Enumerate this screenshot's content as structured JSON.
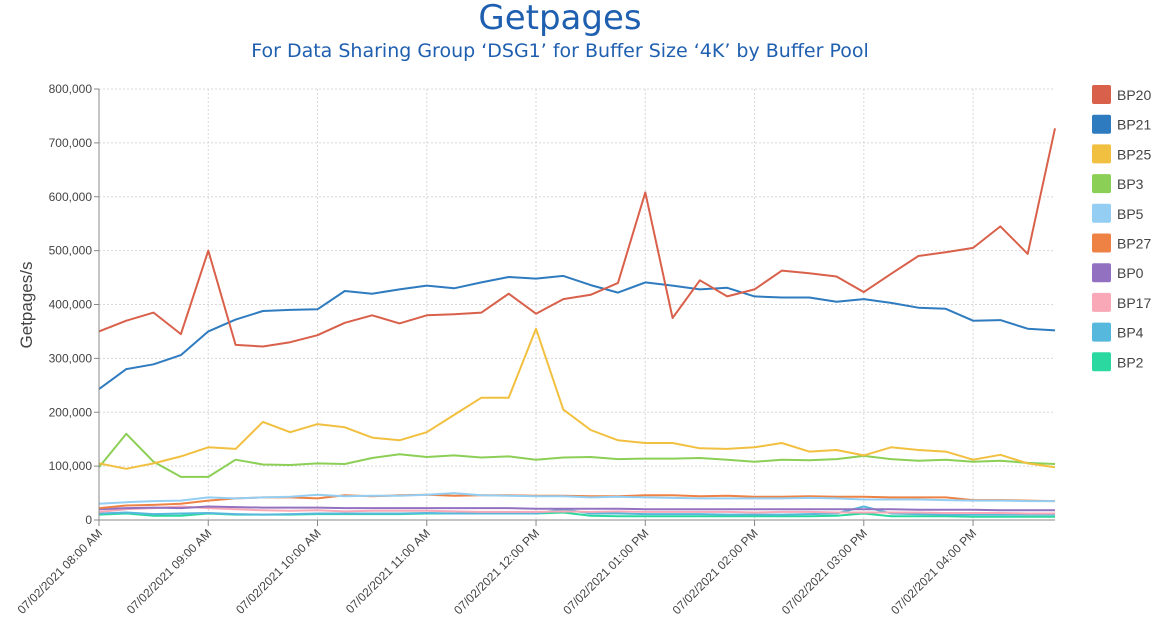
{
  "chart_data": {
    "type": "line",
    "title": "Getpages",
    "subtitle": "For Data Sharing Group ‘DSG1’ for Buffer Size ‘4K’ by Buffer Pool",
    "ylabel": "Getpages/s",
    "xlabel": "",
    "ylim": [
      0,
      800000
    ],
    "yticks": [
      0,
      100000,
      200000,
      300000,
      400000,
      500000,
      600000,
      700000,
      800000
    ],
    "ytick_labels": [
      "0",
      "100,000",
      "200,000",
      "300,000",
      "400,000",
      "500,000",
      "600,000",
      "700,000",
      "800,000"
    ],
    "x_range_minutes": [
      0,
      525
    ],
    "xticks": [
      0,
      60,
      120,
      180,
      240,
      300,
      360,
      420,
      480
    ],
    "xtick_labels": [
      "07/02/2021 08:00 AM",
      "07/02/2021 09:00 AM",
      "07/02/2021 10:00 AM",
      "07/02/2021 11:00 AM",
      "07/02/2021 12:00 PM",
      "07/02/2021 01:00 PM",
      "07/02/2021 02:00 PM",
      "07/02/2021 03:00 PM",
      "07/02/2021 04:00 PM"
    ],
    "x": [
      0,
      15,
      30,
      45,
      60,
      75,
      90,
      105,
      120,
      135,
      150,
      165,
      180,
      195,
      210,
      225,
      240,
      255,
      270,
      285,
      300,
      315,
      330,
      345,
      360,
      375,
      390,
      405,
      420,
      435,
      450,
      465,
      480,
      495,
      510,
      525
    ],
    "grid": true,
    "legend_position": "right",
    "series": [
      {
        "name": "BP20",
        "color": "#d9604a",
        "values": [
          350000,
          370000,
          385000,
          345000,
          500000,
          325000,
          322000,
          330000,
          343000,
          366000,
          380000,
          365000,
          380000,
          382000,
          385000,
          420000,
          383000,
          410000,
          418000,
          440000,
          608000,
          375000,
          445000,
          415000,
          428000,
          463000,
          458000,
          452000,
          423000,
          457000,
          490000,
          497000,
          505000,
          545000,
          494000,
          727000
        ]
      },
      {
        "name": "BP21",
        "color": "#2f7bbf",
        "values": [
          243000,
          280000,
          289000,
          306000,
          350000,
          372000,
          388000,
          390000,
          391000,
          425000,
          420000,
          428000,
          435000,
          430000,
          441000,
          451000,
          448000,
          453000,
          436000,
          422000,
          441000,
          435000,
          428000,
          431000,
          415000,
          413000,
          413000,
          405000,
          410000,
          403000,
          394000,
          392000,
          370000,
          371000,
          355000,
          352000
        ]
      },
      {
        "name": "BP25",
        "color": "#f2c040",
        "values": [
          105000,
          95000,
          105000,
          118000,
          135000,
          132000,
          182000,
          163000,
          178000,
          172000,
          153000,
          148000,
          163000,
          195000,
          227000,
          227000,
          355000,
          205000,
          167000,
          148000,
          143000,
          143000,
          133000,
          132000,
          135000,
          143000,
          127000,
          130000,
          120000,
          135000,
          130000,
          127000,
          112000,
          121000,
          105000,
          98000
        ]
      },
      {
        "name": "BP3",
        "color": "#8ccf56",
        "values": [
          98000,
          160000,
          108000,
          80000,
          80000,
          112000,
          103000,
          102000,
          105000,
          104000,
          115000,
          122000,
          117000,
          120000,
          116000,
          118000,
          112000,
          116000,
          117000,
          113000,
          114000,
          114000,
          115000,
          112000,
          108000,
          112000,
          111000,
          113000,
          119000,
          113000,
          110000,
          112000,
          108000,
          110000,
          106000,
          104000
        ]
      },
      {
        "name": "BP5",
        "color": "#94cef2",
        "values": [
          30000,
          33000,
          35000,
          36000,
          42000,
          40000,
          42000,
          43000,
          47000,
          44000,
          45000,
          45000,
          47000,
          50000,
          46000,
          45000,
          44000,
          44000,
          42000,
          43000,
          42000,
          41000,
          40000,
          40000,
          40000,
          40000,
          41000,
          40000,
          38000,
          38000,
          38000,
          37000,
          36000,
          36000,
          35000,
          35000
        ]
      },
      {
        "name": "BP27",
        "color": "#ee8244",
        "values": [
          22000,
          27000,
          28000,
          30000,
          36000,
          40000,
          42000,
          42000,
          40000,
          46000,
          44000,
          46000,
          47000,
          45000,
          46000,
          46000,
          45000,
          45000,
          44000,
          44000,
          46000,
          46000,
          44000,
          45000,
          43000,
          43000,
          44000,
          43000,
          43000,
          42000,
          42000,
          42000,
          37000,
          37000,
          36000,
          35000
        ]
      },
      {
        "name": "BP0",
        "color": "#9272c0",
        "values": [
          20000,
          22000,
          23000,
          22000,
          25000,
          24000,
          23000,
          23000,
          23000,
          22000,
          22000,
          22000,
          22000,
          22000,
          22000,
          22000,
          21000,
          21000,
          21000,
          21000,
          20000,
          20000,
          20000,
          20000,
          20000,
          20000,
          20000,
          20000,
          20000,
          20000,
          19000,
          19000,
          19000,
          18000,
          18000,
          18000
        ]
      },
      {
        "name": "BP17",
        "color": "#f8a8b6",
        "values": [
          15000,
          20000,
          22000,
          25000,
          22000,
          20000,
          18000,
          17000,
          18000,
          16000,
          17000,
          17000,
          17000,
          16000,
          15000,
          15000,
          15000,
          16000,
          15000,
          16000,
          15000,
          15000,
          15000,
          15000,
          14000,
          15000,
          15000,
          14000,
          14000,
          14000,
          14000,
          13000,
          13000,
          13000,
          12000,
          12000
        ]
      },
      {
        "name": "BP4",
        "color": "#56b8dc",
        "values": [
          12000,
          14000,
          11000,
          12000,
          13000,
          11000,
          10000,
          11000,
          12000,
          12000,
          12000,
          12000,
          13000,
          12000,
          12000,
          12000,
          12000,
          20000,
          12000,
          12000,
          11000,
          11000,
          11000,
          10000,
          10000,
          10000,
          11000,
          12000,
          25000,
          12000,
          11000,
          10000,
          10000,
          10000,
          10000,
          10000
        ]
      },
      {
        "name": "BP2",
        "color": "#2bd9a0",
        "values": [
          10000,
          12000,
          8000,
          8000,
          12000,
          10000,
          10000,
          10000,
          11000,
          11000,
          11000,
          11000,
          12000,
          12000,
          12000,
          12000,
          12000,
          14000,
          8000,
          7000,
          7000,
          7000,
          7000,
          7000,
          7000,
          7000,
          7000,
          8000,
          12000,
          7000,
          7000,
          7000,
          6000,
          6000,
          6000,
          6000
        ]
      }
    ]
  }
}
